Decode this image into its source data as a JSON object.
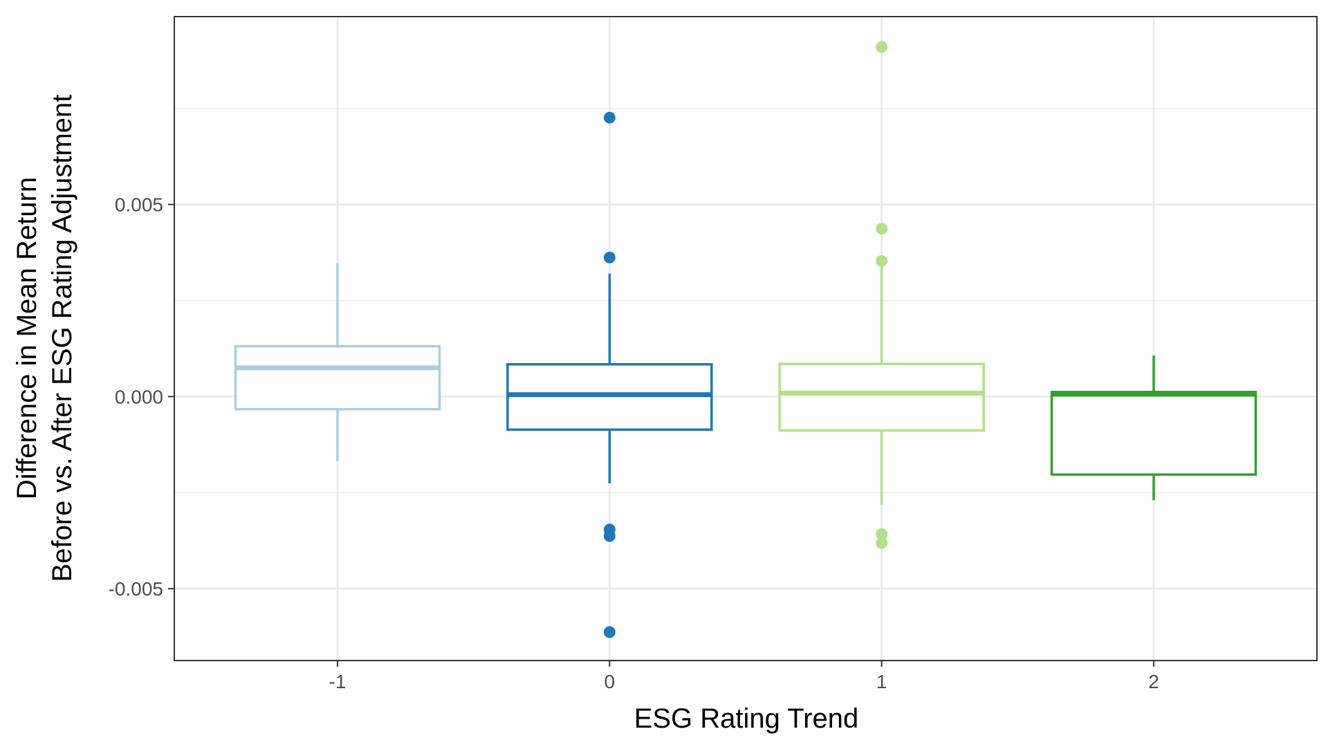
{
  "chart_data": {
    "type": "boxplot",
    "title": "",
    "xlabel": "ESG Rating Trend",
    "ylabel": [
      "Difference in Mean Return",
      "Before vs. After ESG Rating Adjustment"
    ],
    "x_ticks": [
      "-1",
      "0",
      "1",
      "2"
    ],
    "y_ticks": [
      {
        "value": -0.005,
        "label": "-0.005"
      },
      {
        "value": 0.0,
        "label": "0.000"
      },
      {
        "value": 0.005,
        "label": "0.005"
      }
    ],
    "ylim": [
      -0.00687,
      0.00989
    ],
    "grid": true,
    "legend": "none",
    "groups": [
      {
        "category": "-1",
        "color": "#a6cee3",
        "q1": -0.00033,
        "median": 0.00075,
        "q3": 0.00131,
        "whisker_low": -0.00168,
        "whisker_high": 0.00348,
        "outliers": []
      },
      {
        "category": "0",
        "color": "#1f78b4",
        "q1": -0.00086,
        "median": 5e-05,
        "q3": 0.00084,
        "whisker_low": -0.00226,
        "whisker_high": 0.0032,
        "outliers": [
          0.00726,
          0.00362,
          -0.00346,
          -0.00363,
          -0.00613
        ]
      },
      {
        "category": "1",
        "color": "#b2df8a",
        "q1": -0.00088,
        "median": 9e-05,
        "q3": 0.00085,
        "whisker_low": -0.00281,
        "whisker_high": 0.00345,
        "outliers": [
          0.0091,
          0.00437,
          0.00353,
          -0.00358,
          -0.00381
        ]
      },
      {
        "category": "2",
        "color": "#33a02c",
        "q1": -0.00203,
        "median": 6e-05,
        "q3": 0.00012,
        "whisker_low": -0.0027,
        "whisker_high": 0.00107,
        "outliers": []
      }
    ]
  }
}
